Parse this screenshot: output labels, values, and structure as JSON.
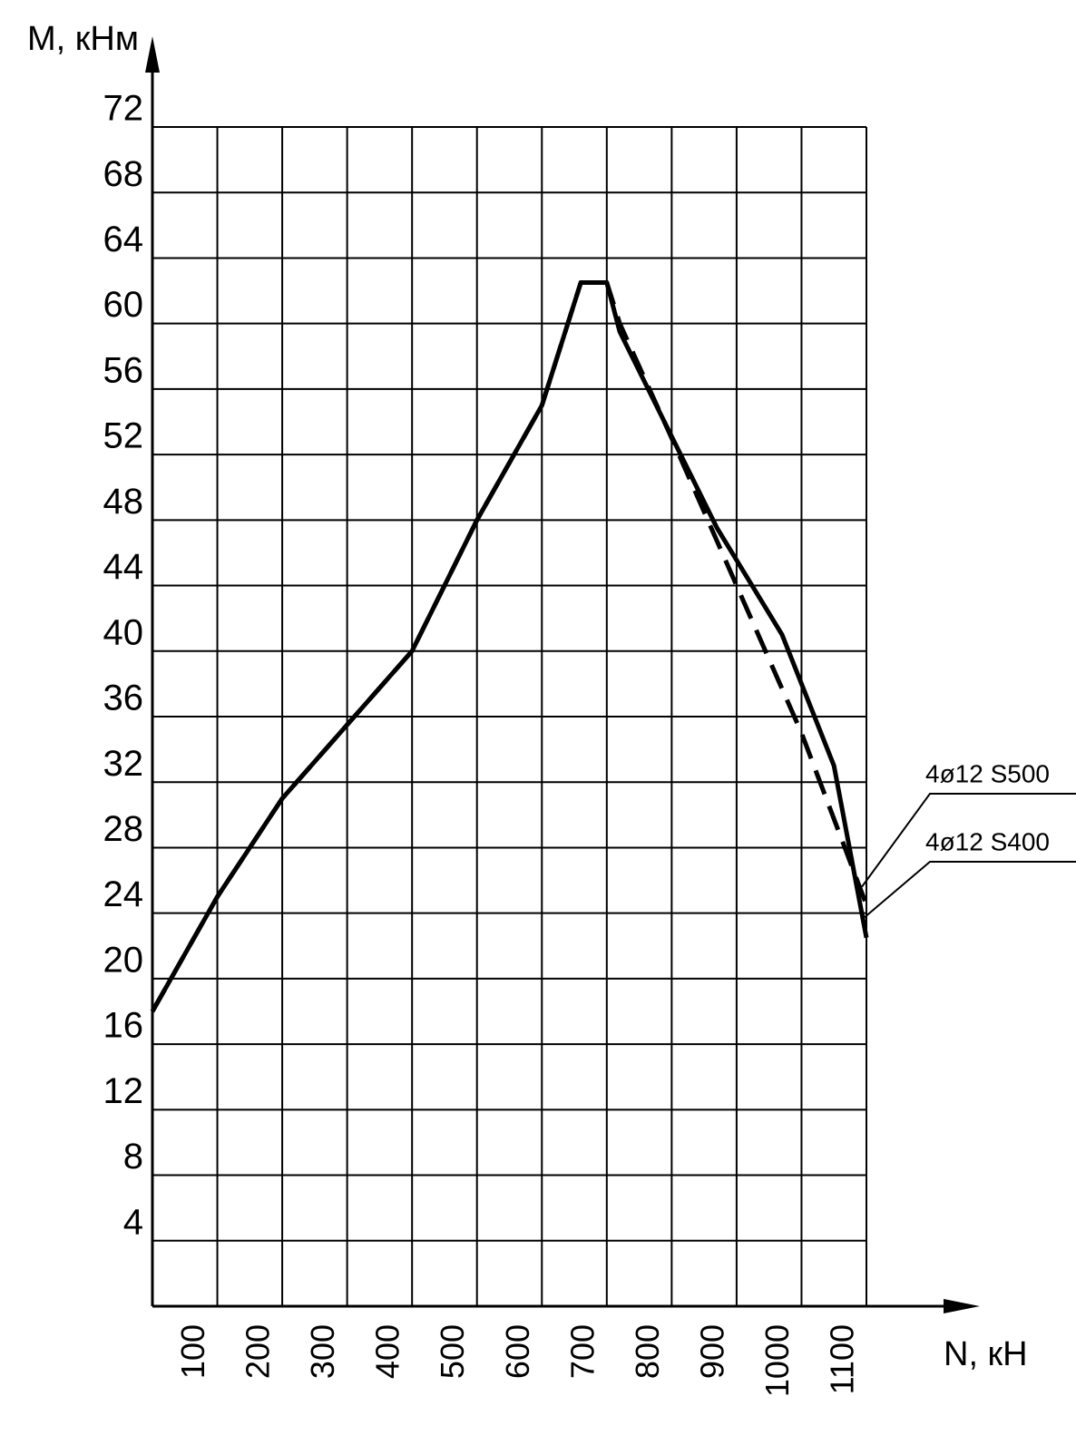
{
  "chart_data": {
    "type": "line",
    "x_label": "N, кН",
    "y_label": "M, кНм",
    "xlim": [
      0,
      1100
    ],
    "xticks": [
      100,
      200,
      300,
      400,
      500,
      600,
      700,
      800,
      900,
      1000,
      1100
    ],
    "ylim": [
      0,
      72
    ],
    "yticks": [
      4,
      8,
      12,
      16,
      20,
      24,
      28,
      32,
      36,
      40,
      44,
      48,
      52,
      56,
      60,
      64,
      68,
      72
    ],
    "grid": true,
    "series": [
      {
        "name": "4ø12 S500",
        "color": "#000000",
        "dashed": true,
        "x": [
          0,
          100,
          200,
          300,
          400,
          500,
          600,
          660,
          700,
          720,
          800,
          900,
          1000,
          1100
        ],
        "values": [
          18,
          25,
          31,
          35.5,
          40,
          48,
          55,
          62.5,
          62.5,
          60,
          53,
          44,
          35,
          24.5
        ]
      },
      {
        "name": "4ø12 S400",
        "color": "#000000",
        "dashed": false,
        "x": [
          0,
          100,
          200,
          300,
          400,
          500,
          600,
          660,
          700,
          720,
          870,
          970,
          1050,
          1100
        ],
        "values": [
          18,
          25,
          31,
          35.5,
          40,
          48,
          55,
          62.5,
          62.5,
          59.5,
          47.5,
          41,
          33,
          22.5
        ]
      }
    ]
  }
}
